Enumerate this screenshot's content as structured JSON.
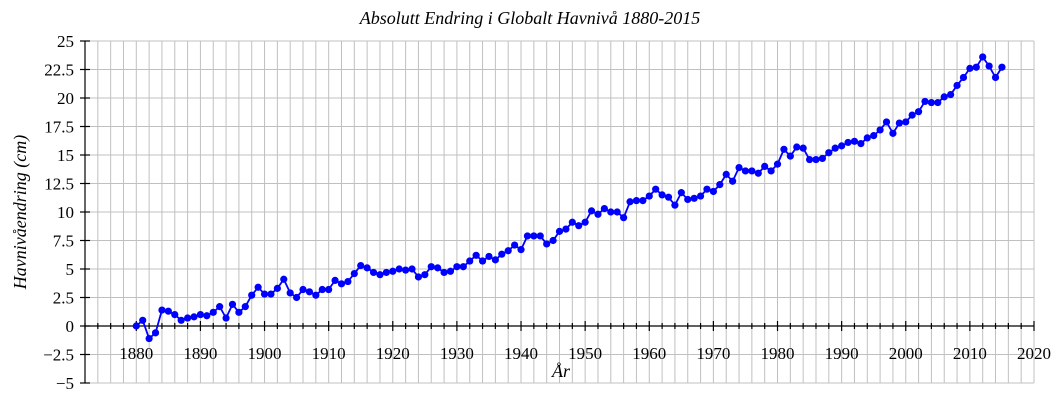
{
  "chart_data": {
    "type": "line",
    "title": "Absolutt Endring i Globalt Havnivå 1880-2015",
    "xlabel": "År",
    "ylabel": "Havnivåendring (cm)",
    "xlim": [
      1872,
      2020
    ],
    "ylim": [
      -5,
      25
    ],
    "x_ticks": [
      1880,
      1890,
      1900,
      1910,
      1920,
      1930,
      1940,
      1950,
      1960,
      1970,
      1980,
      1990,
      2000,
      2010,
      2020
    ],
    "y_ticks": [
      -5,
      -2.5,
      0,
      2.5,
      5,
      7.5,
      10,
      12.5,
      15,
      17.5,
      20,
      22.5,
      25
    ],
    "y_tick_labels": [
      "−5",
      "−2.5",
      "0",
      "2.5",
      "5",
      "7.5",
      "10",
      "12.5",
      "15",
      "17.5",
      "20",
      "22.5",
      "25"
    ],
    "grid": true,
    "series": [
      {
        "color": "#0000ff",
        "x": [
          1880,
          1881,
          1882,
          1883,
          1884,
          1885,
          1886,
          1887,
          1888,
          1889,
          1890,
          1891,
          1892,
          1893,
          1894,
          1895,
          1896,
          1897,
          1898,
          1899,
          1900,
          1901,
          1902,
          1903,
          1904,
          1905,
          1906,
          1907,
          1908,
          1909,
          1910,
          1911,
          1912,
          1913,
          1914,
          1915,
          1916,
          1917,
          1918,
          1919,
          1920,
          1921,
          1922,
          1923,
          1924,
          1925,
          1926,
          1927,
          1928,
          1929,
          1930,
          1931,
          1932,
          1933,
          1934,
          1935,
          1936,
          1937,
          1938,
          1939,
          1940,
          1941,
          1942,
          1943,
          1944,
          1945,
          1946,
          1947,
          1948,
          1949,
          1950,
          1951,
          1952,
          1953,
          1954,
          1955,
          1956,
          1957,
          1958,
          1959,
          1960,
          1961,
          1962,
          1963,
          1964,
          1965,
          1966,
          1967,
          1968,
          1969,
          1970,
          1971,
          1972,
          1973,
          1974,
          1975,
          1976,
          1977,
          1978,
          1979,
          1980,
          1981,
          1982,
          1983,
          1984,
          1985,
          1986,
          1987,
          1988,
          1989,
          1990,
          1991,
          1992,
          1993,
          1994,
          1995,
          1996,
          1997,
          1998,
          1999,
          2000,
          2001,
          2002,
          2003,
          2004,
          2005,
          2006,
          2007,
          2008,
          2009,
          2010,
          2011,
          2012,
          2013,
          2014,
          2015
        ],
        "y": [
          0.0,
          0.5,
          -1.1,
          -0.6,
          1.4,
          1.3,
          1.0,
          0.5,
          0.7,
          0.8,
          1.0,
          0.9,
          1.2,
          1.7,
          0.7,
          1.9,
          1.2,
          1.7,
          2.7,
          3.4,
          2.8,
          2.8,
          3.3,
          4.1,
          2.9,
          2.5,
          3.2,
          3.0,
          2.7,
          3.2,
          3.2,
          4.0,
          3.7,
          3.9,
          4.6,
          5.3,
          5.1,
          4.7,
          4.5,
          4.7,
          4.8,
          5.0,
          4.9,
          5.0,
          4.3,
          4.5,
          5.2,
          5.1,
          4.7,
          4.8,
          5.2,
          5.2,
          5.7,
          6.2,
          5.7,
          6.1,
          5.8,
          6.3,
          6.6,
          7.1,
          6.7,
          7.9,
          7.9,
          7.9,
          7.2,
          7.5,
          8.3,
          8.5,
          9.1,
          8.8,
          9.1,
          10.1,
          9.8,
          10.3,
          10.0,
          10.0,
          9.5,
          10.9,
          11.0,
          11.0,
          11.4,
          12.0,
          11.5,
          11.3,
          10.6,
          11.7,
          11.1,
          11.2,
          11.4,
          12.0,
          11.8,
          12.4,
          13.3,
          12.7,
          13.9,
          13.6,
          13.6,
          13.4,
          14.0,
          13.6,
          14.2,
          15.5,
          14.9,
          15.7,
          15.6,
          14.6,
          14.6,
          14.7,
          15.2,
          15.6,
          15.8,
          16.1,
          16.2,
          16.0,
          16.5,
          16.7,
          17.2,
          17.9,
          16.9,
          17.8,
          17.9,
          18.5,
          18.8,
          19.7,
          19.6,
          19.6,
          20.1,
          20.3,
          21.1,
          21.8,
          22.6,
          22.7,
          23.6,
          22.8,
          21.8,
          22.7
        ]
      }
    ]
  }
}
